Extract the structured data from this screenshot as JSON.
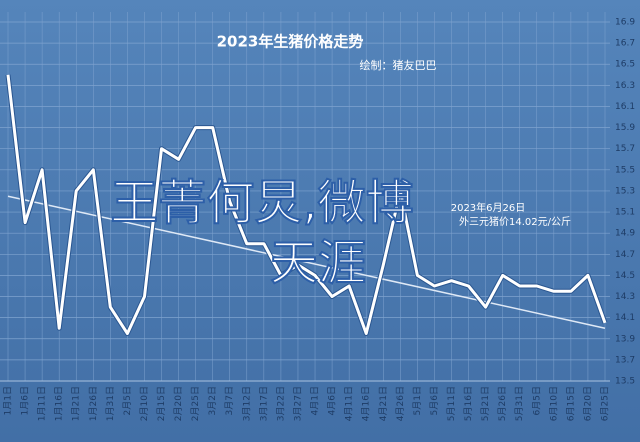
{
  "chart_data": {
    "type": "line",
    "title": "2023年生猪价格走势",
    "subtitle": "绘制：猪友巴巴",
    "annotations": [
      "2023年6月26日",
      "外三元猪价14.02元/公斤"
    ],
    "overlay_text": [
      "王菁何炅,微博",
      "天涯"
    ],
    "categories": [
      "1月1日",
      "1月6日",
      "1月11日",
      "1月16日",
      "1月21日",
      "1月26日",
      "1月31日",
      "2月5日",
      "2月10日",
      "2月15日",
      "2月20日",
      "2月25日",
      "3月2日",
      "3月7日",
      "3月12日",
      "3月17日",
      "3月22日",
      "3月27日",
      "4月1日",
      "4月6日",
      "4月11日",
      "4月16日",
      "4月21日",
      "4月26日",
      "5月1日",
      "5月6日",
      "5月11日",
      "5月16日",
      "5月21日",
      "5月26日",
      "5月31日",
      "6月5日",
      "6月10日",
      "6月15日",
      "6月20日",
      "6月25日"
    ],
    "series": [
      {
        "name": "外三元猪价",
        "color": "#ffffff",
        "values": [
          16.4,
          15.0,
          15.5,
          14.0,
          15.3,
          15.5,
          14.2,
          13.95,
          14.3,
          15.7,
          15.6,
          15.9,
          15.9,
          15.2,
          14.8,
          14.8,
          14.5,
          14.6,
          14.5,
          14.3,
          14.4,
          13.95,
          14.6,
          15.3,
          14.5,
          14.4,
          14.45,
          14.4,
          14.2,
          14.5,
          14.4,
          14.4,
          14.35,
          14.35,
          14.5,
          14.05
        ]
      }
    ],
    "trendline": [
      15.25,
      14.0
    ],
    "ylim": [
      13.5,
      16.9
    ],
    "yticks": [
      13.5,
      13.7,
      13.9,
      14.1,
      14.3,
      14.5,
      14.7,
      14.9,
      15.1,
      15.3,
      15.5,
      15.7,
      15.9,
      16.1,
      16.3,
      16.5,
      16.7,
      16.9
    ],
    "grid": true
  }
}
